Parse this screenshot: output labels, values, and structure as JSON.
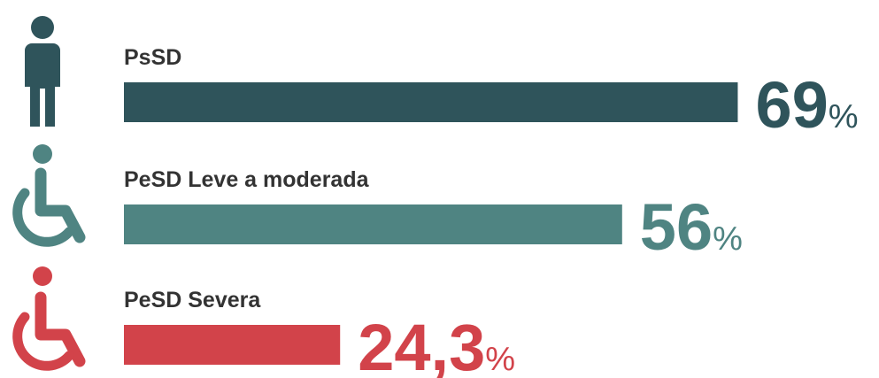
{
  "chart_data": {
    "type": "bar",
    "categories": [
      "PsSD",
      "PeSD Leve a moderada",
      "PeSD Severa"
    ],
    "values": [
      69,
      56,
      24.3
    ],
    "value_labels": [
      "69%",
      "56%",
      "24,3%"
    ],
    "colors": [
      "#2f545b",
      "#4f8482",
      "#d2434a"
    ]
  }
}
